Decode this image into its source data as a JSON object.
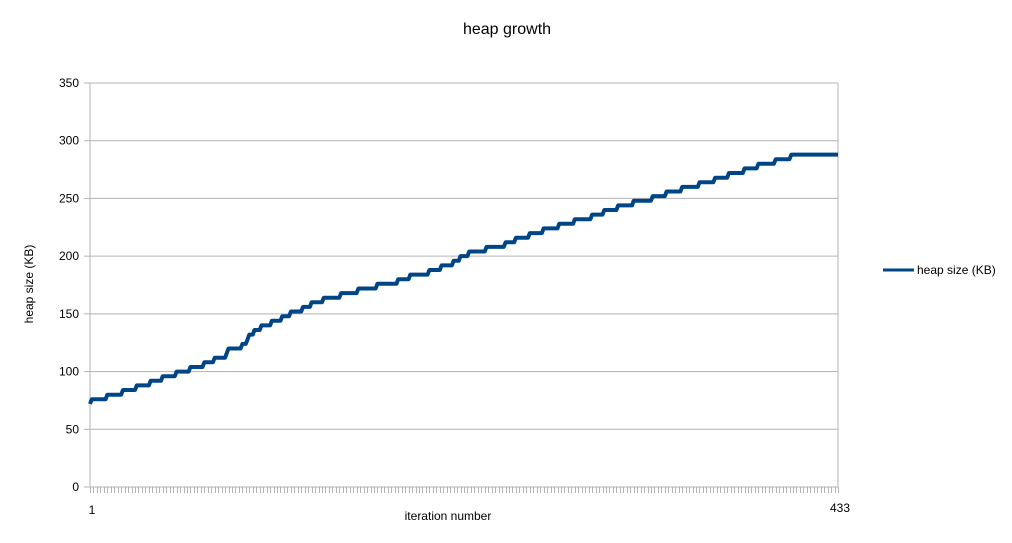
{
  "chart_data": {
    "type": "line",
    "title": "heap growth",
    "xlabel": "iteration number",
    "ylabel": "heap size (KB)",
    "x_range": [
      1,
      433
    ],
    "x_tick_labels": [
      "1",
      "433"
    ],
    "ylim": [
      0,
      350
    ],
    "y_ticks": [
      0,
      50,
      100,
      150,
      200,
      250,
      300,
      350
    ],
    "grid": "horizontal",
    "legend": "right",
    "series": [
      {
        "name": "heap size (KB)",
        "color": "#004586",
        "points": [
          [
            1,
            72
          ],
          [
            2,
            76
          ],
          [
            10,
            76
          ],
          [
            11,
            80
          ],
          [
            19,
            80
          ],
          [
            20,
            84
          ],
          [
            27,
            84
          ],
          [
            28,
            88
          ],
          [
            35,
            88
          ],
          [
            36,
            92
          ],
          [
            42,
            92
          ],
          [
            43,
            96
          ],
          [
            50,
            96
          ],
          [
            51,
            100
          ],
          [
            58,
            100
          ],
          [
            59,
            104
          ],
          [
            66,
            104
          ],
          [
            67,
            108
          ],
          [
            72,
            108
          ],
          [
            73,
            112
          ],
          [
            79,
            112
          ],
          [
            80,
            116
          ],
          [
            81,
            120
          ],
          [
            88,
            120
          ],
          [
            89,
            124
          ],
          [
            91,
            124
          ],
          [
            92,
            128
          ],
          [
            93,
            132
          ],
          [
            95,
            132
          ],
          [
            96,
            136
          ],
          [
            99,
            136
          ],
          [
            100,
            140
          ],
          [
            105,
            140
          ],
          [
            106,
            144
          ],
          [
            111,
            144
          ],
          [
            112,
            148
          ],
          [
            116,
            148
          ],
          [
            117,
            152
          ],
          [
            123,
            152
          ],
          [
            124,
            156
          ],
          [
            128,
            156
          ],
          [
            129,
            160
          ],
          [
            135,
            160
          ],
          [
            136,
            164
          ],
          [
            145,
            164
          ],
          [
            146,
            168
          ],
          [
            155,
            168
          ],
          [
            156,
            172
          ],
          [
            166,
            172
          ],
          [
            167,
            176
          ],
          [
            178,
            176
          ],
          [
            179,
            180
          ],
          [
            185,
            180
          ],
          [
            186,
            184
          ],
          [
            196,
            184
          ],
          [
            197,
            188
          ],
          [
            203,
            188
          ],
          [
            204,
            192
          ],
          [
            210,
            192
          ],
          [
            211,
            196
          ],
          [
            214,
            196
          ],
          [
            215,
            200
          ],
          [
            219,
            200
          ],
          [
            220,
            204
          ],
          [
            229,
            204
          ],
          [
            230,
            208
          ],
          [
            240,
            208
          ],
          [
            241,
            212
          ],
          [
            246,
            212
          ],
          [
            247,
            216
          ],
          [
            254,
            216
          ],
          [
            255,
            220
          ],
          [
            262,
            220
          ],
          [
            263,
            224
          ],
          [
            271,
            224
          ],
          [
            272,
            228
          ],
          [
            280,
            228
          ],
          [
            281,
            232
          ],
          [
            290,
            232
          ],
          [
            291,
            236
          ],
          [
            297,
            236
          ],
          [
            298,
            240
          ],
          [
            305,
            240
          ],
          [
            306,
            244
          ],
          [
            314,
            244
          ],
          [
            315,
            248
          ],
          [
            325,
            248
          ],
          [
            326,
            252
          ],
          [
            333,
            252
          ],
          [
            334,
            256
          ],
          [
            342,
            256
          ],
          [
            343,
            260
          ],
          [
            352,
            260
          ],
          [
            353,
            264
          ],
          [
            361,
            264
          ],
          [
            362,
            268
          ],
          [
            369,
            268
          ],
          [
            370,
            272
          ],
          [
            378,
            272
          ],
          [
            379,
            276
          ],
          [
            386,
            276
          ],
          [
            387,
            280
          ],
          [
            396,
            280
          ],
          [
            397,
            284
          ],
          [
            405,
            284
          ],
          [
            406,
            288
          ],
          [
            433,
            288
          ]
        ]
      }
    ]
  }
}
